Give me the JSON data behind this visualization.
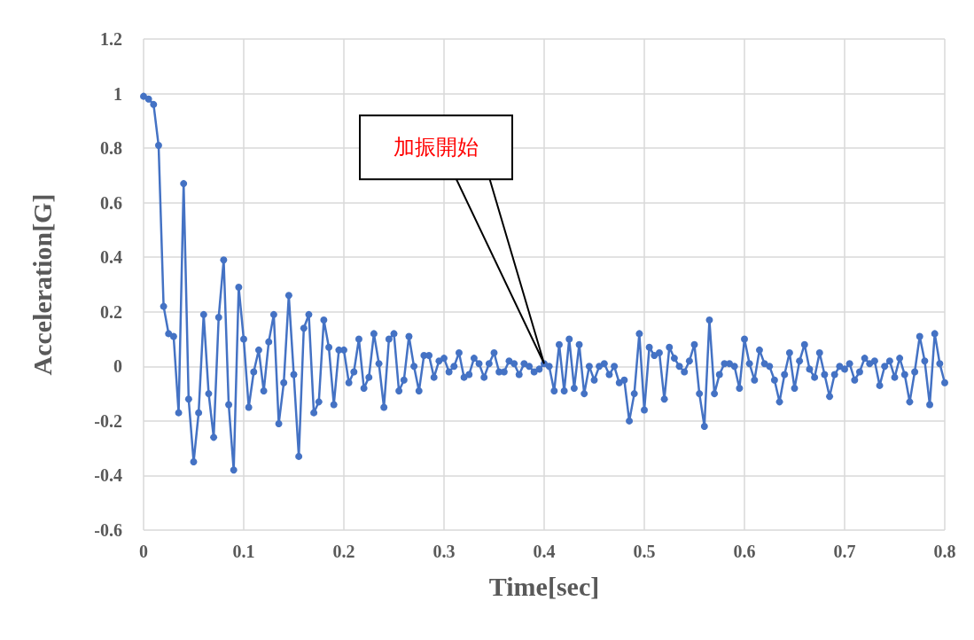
{
  "chart_data": {
    "type": "line",
    "xlabel": "Time[sec]",
    "ylabel": "Acceleration[G]",
    "xlim": [
      0,
      0.8
    ],
    "xticks": [
      0,
      0.1,
      0.2,
      0.3,
      0.4,
      0.5,
      0.6,
      0.7,
      0.8
    ],
    "ylim": [
      -0.6,
      1.2
    ],
    "yticks": [
      -0.6,
      -0.4,
      -0.2,
      0,
      0.2,
      0.4,
      0.6,
      0.8,
      1,
      1.2
    ],
    "grid": true,
    "marker": "circle",
    "line_style": "solid",
    "annotations": [
      {
        "text": "加振開始",
        "x": 0.4,
        "y": 0.01
      }
    ],
    "x": [
      0,
      0.005,
      0.01,
      0.015,
      0.02,
      0.025,
      0.03,
      0.035,
      0.04,
      0.045,
      0.05,
      0.055,
      0.06,
      0.065,
      0.07,
      0.075,
      0.08,
      0.085,
      0.09,
      0.095,
      0.1,
      0.105,
      0.11,
      0.115,
      0.12,
      0.125,
      0.13,
      0.135,
      0.14,
      0.145,
      0.15,
      0.155,
      0.16,
      0.165,
      0.17,
      0.175,
      0.18,
      0.185,
      0.19,
      0.195,
      0.2,
      0.205,
      0.21,
      0.215,
      0.22,
      0.225,
      0.23,
      0.235,
      0.24,
      0.245,
      0.25,
      0.255,
      0.26,
      0.265,
      0.27,
      0.275,
      0.28,
      0.285,
      0.29,
      0.295,
      0.3,
      0.305,
      0.31,
      0.315,
      0.32,
      0.325,
      0.33,
      0.335,
      0.34,
      0.345,
      0.35,
      0.355,
      0.36,
      0.365,
      0.37,
      0.375,
      0.38,
      0.385,
      0.39,
      0.395,
      0.4,
      0.405,
      0.41,
      0.415,
      0.42,
      0.425,
      0.43,
      0.435,
      0.44,
      0.445,
      0.45,
      0.455,
      0.46,
      0.465,
      0.47,
      0.475,
      0.48,
      0.485,
      0.49,
      0.495,
      0.5,
      0.505,
      0.51,
      0.515,
      0.52,
      0.525,
      0.53,
      0.535,
      0.54,
      0.545,
      0.55,
      0.555,
      0.56,
      0.565,
      0.57,
      0.575,
      0.58,
      0.585,
      0.59,
      0.595,
      0.6,
      0.605,
      0.61,
      0.615,
      0.62,
      0.625,
      0.63,
      0.635,
      0.64,
      0.645,
      0.65,
      0.655,
      0.66,
      0.665,
      0.67,
      0.675,
      0.68,
      0.685,
      0.69,
      0.695,
      0.7,
      0.705,
      0.71,
      0.715,
      0.72,
      0.725,
      0.73,
      0.735,
      0.74,
      0.745,
      0.75,
      0.755,
      0.76,
      0.765,
      0.77,
      0.775,
      0.78,
      0.785,
      0.79,
      0.795,
      0.8
    ],
    "series": [
      {
        "color": "#4472c4",
        "values": [
          0.99,
          0.98,
          0.96,
          0.81,
          0.22,
          0.12,
          0.11,
          -0.17,
          0.67,
          -0.12,
          -0.35,
          -0.17,
          0.19,
          -0.1,
          -0.26,
          0.18,
          0.39,
          -0.14,
          -0.38,
          0.29,
          0.1,
          -0.15,
          -0.02,
          0.06,
          -0.09,
          0.09,
          0.19,
          -0.21,
          -0.06,
          0.26,
          -0.03,
          -0.33,
          0.14,
          0.19,
          -0.17,
          -0.13,
          0.17,
          0.07,
          -0.14,
          0.06,
          0.06,
          -0.06,
          -0.02,
          0.1,
          -0.08,
          -0.04,
          0.12,
          0.01,
          -0.15,
          0.1,
          0.12,
          -0.09,
          -0.05,
          0.11,
          0,
          -0.09,
          0.04,
          0.04,
          -0.04,
          0.02,
          0.03,
          -0.02,
          0,
          0.05,
          -0.04,
          -0.03,
          0.03,
          0.01,
          -0.04,
          0.01,
          0.05,
          -0.02,
          -0.02,
          0.02,
          0.01,
          -0.03,
          0.01,
          0,
          -0.02,
          -0.01,
          0.01,
          0,
          -0.09,
          0.08,
          -0.09,
          0.1,
          -0.08,
          0.08,
          -0.1,
          0,
          -0.05,
          0,
          0.01,
          -0.03,
          0,
          -0.06,
          -0.05,
          -0.2,
          -0.1,
          0.12,
          -0.16,
          0.07,
          0.04,
          0.05,
          -0.12,
          0.07,
          0.03,
          0,
          -0.02,
          0.02,
          0.08,
          -0.1,
          -0.22,
          0.17,
          -0.1,
          -0.03,
          0.01,
          0.01,
          0,
          -0.08,
          0.1,
          0.01,
          -0.05,
          0.06,
          0.01,
          0,
          -0.05,
          -0.13,
          -0.03,
          0.05,
          -0.08,
          0.02,
          0.08,
          -0.01,
          -0.04,
          0.05,
          -0.03,
          -0.11,
          -0.03,
          0,
          -0.01,
          0.01,
          -0.05,
          -0.02,
          0.03,
          0.01,
          0.02,
          -0.07,
          0,
          0.02,
          -0.04,
          0.03,
          -0.03,
          -0.13,
          -0.02,
          0.11,
          0.02,
          -0.14,
          0.12,
          0.01,
          -0.06
        ]
      }
    ]
  }
}
